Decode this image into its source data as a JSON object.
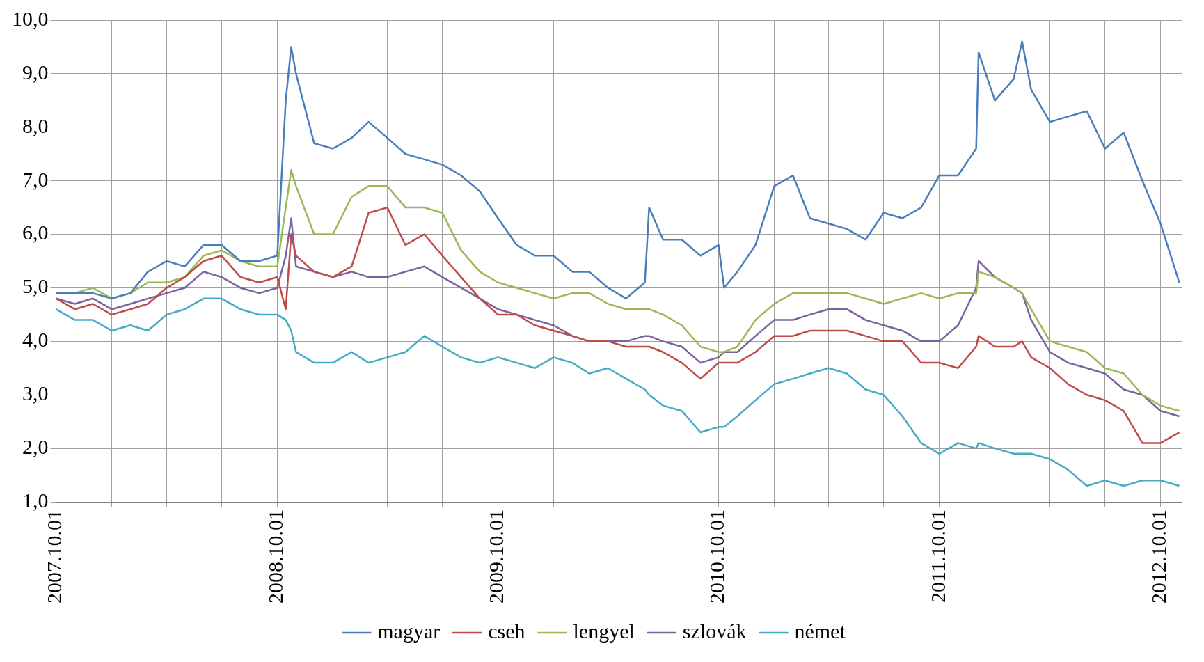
{
  "chart_data": {
    "type": "line",
    "x": [
      "2007-10-01",
      "2007-11-01",
      "2007-12-01",
      "2008-01-01",
      "2008-02-01",
      "2008-03-01",
      "2008-04-01",
      "2008-05-01",
      "2008-06-01",
      "2008-07-01",
      "2008-08-01",
      "2008-09-01",
      "2008-10-01",
      "2008-10-15",
      "2008-10-24",
      "2008-11-01",
      "2008-12-01",
      "2009-01-01",
      "2009-02-01",
      "2009-03-01",
      "2009-04-01",
      "2009-05-01",
      "2009-06-01",
      "2009-07-01",
      "2009-08-01",
      "2009-09-01",
      "2009-10-01",
      "2009-11-01",
      "2009-12-01",
      "2010-01-01",
      "2010-02-01",
      "2010-03-01",
      "2010-04-01",
      "2010-05-01",
      "2010-06-01",
      "2010-06-08",
      "2010-07-01",
      "2010-08-01",
      "2010-09-01",
      "2010-10-01",
      "2010-10-10",
      "2010-11-01",
      "2010-12-01",
      "2011-01-01",
      "2011-02-01",
      "2011-03-01",
      "2011-04-01",
      "2011-05-01",
      "2011-06-01",
      "2011-07-01",
      "2011-08-01",
      "2011-09-01",
      "2011-10-01",
      "2011-11-01",
      "2011-12-01",
      "2011-12-05",
      "2012-01-01",
      "2012-02-01",
      "2012-02-15",
      "2012-03-01",
      "2012-04-01",
      "2012-05-01",
      "2012-06-01",
      "2012-07-01",
      "2012-08-01",
      "2012-09-01",
      "2012-10-01",
      "2012-11-01"
    ],
    "series": [
      {
        "name": "magyar",
        "color": "#4a7ebb",
        "values": [
          4.9,
          4.9,
          4.9,
          4.8,
          4.9,
          5.3,
          5.5,
          5.4,
          5.8,
          5.8,
          5.5,
          5.5,
          5.6,
          8.5,
          9.5,
          9.0,
          7.7,
          7.6,
          7.8,
          8.1,
          7.8,
          7.5,
          7.4,
          7.3,
          7.1,
          6.8,
          6.3,
          5.8,
          5.6,
          5.6,
          5.3,
          5.3,
          5.0,
          4.8,
          5.1,
          6.5,
          5.9,
          5.9,
          5.6,
          5.8,
          5.0,
          5.3,
          5.8,
          6.9,
          7.1,
          6.3,
          6.2,
          6.1,
          5.9,
          6.4,
          6.3,
          6.5,
          7.1,
          7.1,
          7.6,
          9.4,
          8.5,
          8.9,
          9.6,
          8.7,
          8.1,
          8.2,
          8.3,
          7.6,
          7.9,
          7.0,
          6.2,
          5.1
        ]
      },
      {
        "name": "cseh",
        "color": "#be4b48",
        "values": [
          4.8,
          4.6,
          4.7,
          4.5,
          4.6,
          4.7,
          5.0,
          5.2,
          5.5,
          5.6,
          5.2,
          5.1,
          5.2,
          4.6,
          6.0,
          5.6,
          5.3,
          5.2,
          5.4,
          6.4,
          6.5,
          5.8,
          6.0,
          5.6,
          5.2,
          4.8,
          4.5,
          4.5,
          4.3,
          4.2,
          4.1,
          4.0,
          4.0,
          3.9,
          3.9,
          3.9,
          3.8,
          3.6,
          3.3,
          3.6,
          3.6,
          3.6,
          3.8,
          4.1,
          4.1,
          4.2,
          4.2,
          4.2,
          4.1,
          4.0,
          4.0,
          3.6,
          3.6,
          3.5,
          3.9,
          4.1,
          3.9,
          3.9,
          4.0,
          3.7,
          3.5,
          3.2,
          3.0,
          2.9,
          2.7,
          2.1,
          2.1,
          2.3
        ]
      },
      {
        "name": "lengyel",
        "color": "#98b954",
        "values": [
          4.9,
          4.9,
          5.0,
          4.8,
          4.9,
          5.1,
          5.1,
          5.2,
          5.6,
          5.7,
          5.5,
          5.4,
          5.4,
          6.5,
          7.2,
          6.9,
          6.0,
          6.0,
          6.7,
          6.9,
          6.9,
          6.5,
          6.5,
          6.4,
          5.7,
          5.3,
          5.1,
          5.0,
          4.9,
          4.8,
          4.9,
          4.9,
          4.7,
          4.6,
          4.6,
          4.6,
          4.5,
          4.3,
          3.9,
          3.8,
          3.8,
          3.9,
          4.4,
          4.7,
          4.9,
          4.9,
          4.9,
          4.9,
          4.8,
          4.7,
          4.8,
          4.9,
          4.8,
          4.9,
          4.9,
          5.3,
          5.2,
          5.0,
          4.9,
          4.6,
          4.0,
          3.9,
          3.8,
          3.5,
          3.4,
          3.0,
          2.8,
          2.7
        ]
      },
      {
        "name": "szlovák",
        "color": "#7d60a0",
        "values": [
          4.8,
          4.7,
          4.8,
          4.6,
          4.7,
          4.8,
          4.9,
          5.0,
          5.3,
          5.2,
          5.0,
          4.9,
          5.0,
          5.6,
          6.3,
          5.4,
          5.3,
          5.2,
          5.3,
          5.2,
          5.2,
          5.3,
          5.4,
          5.2,
          5.0,
          4.8,
          4.6,
          4.5,
          4.4,
          4.3,
          4.1,
          4.0,
          4.0,
          4.0,
          4.1,
          4.1,
          4.0,
          3.9,
          3.6,
          3.7,
          3.8,
          3.8,
          4.1,
          4.4,
          4.4,
          4.5,
          4.6,
          4.6,
          4.4,
          4.3,
          4.2,
          4.0,
          4.0,
          4.3,
          5.0,
          5.5,
          5.2,
          5.0,
          4.9,
          4.4,
          3.8,
          3.6,
          3.5,
          3.4,
          3.1,
          3.0,
          2.7,
          2.6
        ]
      },
      {
        "name": "német",
        "color": "#46aac5",
        "values": [
          4.6,
          4.4,
          4.4,
          4.2,
          4.3,
          4.2,
          4.5,
          4.6,
          4.8,
          4.8,
          4.6,
          4.5,
          4.5,
          4.4,
          4.2,
          3.8,
          3.6,
          3.6,
          3.8,
          3.6,
          3.7,
          3.8,
          4.1,
          3.9,
          3.7,
          3.6,
          3.7,
          3.6,
          3.5,
          3.7,
          3.6,
          3.4,
          3.5,
          3.3,
          3.1,
          3.0,
          2.8,
          2.7,
          2.3,
          2.4,
          2.4,
          2.6,
          2.9,
          3.2,
          3.3,
          3.4,
          3.5,
          3.4,
          3.1,
          3.0,
          2.6,
          2.1,
          1.9,
          2.1,
          2.0,
          2.1,
          2.0,
          1.9,
          1.9,
          1.9,
          1.8,
          1.6,
          1.3,
          1.4,
          1.3,
          1.4,
          1.4,
          1.3
        ]
      }
    ],
    "xlim": [
      "2007-10-01",
      "2012-11-05"
    ],
    "xticks": [
      {
        "value": "2007-10-01",
        "label": "2007.10.01"
      },
      {
        "value": "2008-01-01",
        "label": null
      },
      {
        "value": "2008-04-01",
        "label": null
      },
      {
        "value": "2008-07-01",
        "label": null
      },
      {
        "value": "2008-10-01",
        "label": "2008.10.01"
      },
      {
        "value": "2009-01-01",
        "label": null
      },
      {
        "value": "2009-04-01",
        "label": null
      },
      {
        "value": "2009-07-01",
        "label": null
      },
      {
        "value": "2009-10-01",
        "label": "2009.10.01"
      },
      {
        "value": "2010-01-01",
        "label": null
      },
      {
        "value": "2010-04-01",
        "label": null
      },
      {
        "value": "2010-07-01",
        "label": null
      },
      {
        "value": "2010-10-01",
        "label": "2010.10.01"
      },
      {
        "value": "2011-01-01",
        "label": null
      },
      {
        "value": "2011-04-01",
        "label": null
      },
      {
        "value": "2011-07-01",
        "label": null
      },
      {
        "value": "2011-10-01",
        "label": "2011.10.01"
      },
      {
        "value": "2012-01-01",
        "label": null
      },
      {
        "value": "2012-04-01",
        "label": null
      },
      {
        "value": "2012-07-01",
        "label": null
      },
      {
        "value": "2012-10-01",
        "label": "2012.10.01"
      }
    ],
    "ylim": [
      1,
      10
    ],
    "yticks": [
      {
        "value": 1,
        "label": "1,0"
      },
      {
        "value": 2,
        "label": "2,0"
      },
      {
        "value": 3,
        "label": "3,0"
      },
      {
        "value": 4,
        "label": "4,0"
      },
      {
        "value": 5,
        "label": "5,0"
      },
      {
        "value": 6,
        "label": "6,0"
      },
      {
        "value": 7,
        "label": "7,0"
      },
      {
        "value": 8,
        "label": "8,0"
      },
      {
        "value": 9,
        "label": "9,0"
      },
      {
        "value": 10,
        "label": "10,0"
      }
    ],
    "grid": true,
    "legend": "bottom"
  }
}
